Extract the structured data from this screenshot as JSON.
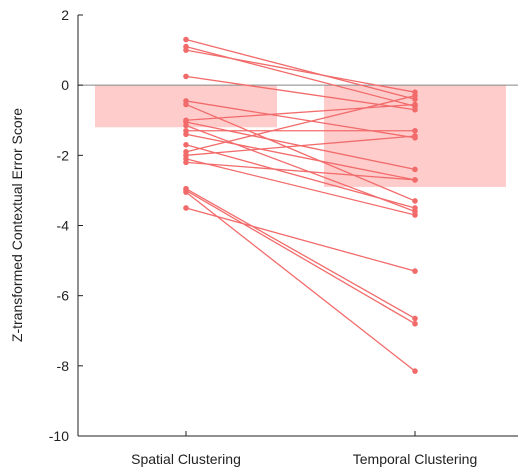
{
  "chart_data": {
    "type": "bar",
    "title": "",
    "xlabel": "",
    "ylabel": "Z-transformed Contextual Error Score",
    "categories": [
      "Spatial Clustering",
      "Temporal Clustering"
    ],
    "ylim": [
      -10,
      2
    ],
    "yticks": [
      2,
      0,
      -2,
      -4,
      -6,
      -8,
      -10
    ],
    "grid": false,
    "bar_color": "#ffcccc",
    "line_color": "#f26b6b",
    "zero_line_color": "#888888",
    "series": [
      {
        "name": "",
        "values": [
          -1.2,
          -2.9
        ]
      }
    ],
    "subjects": [
      {
        "spatial": 1.3,
        "temporal": -0.4
      },
      {
        "spatial": 1.1,
        "temporal": -0.6
      },
      {
        "spatial": 1.0,
        "temporal": -0.2
      },
      {
        "spatial": 0.25,
        "temporal": -0.7
      },
      {
        "spatial": -0.45,
        "temporal": -1.5
      },
      {
        "spatial": -0.55,
        "temporal": -3.3
      },
      {
        "spatial": -1.0,
        "temporal": -0.55
      },
      {
        "spatial": -1.05,
        "temporal": -2.4
      },
      {
        "spatial": -1.15,
        "temporal": -3.6
      },
      {
        "spatial": -1.3,
        "temporal": -1.3
      },
      {
        "spatial": -1.4,
        "temporal": -2.7
      },
      {
        "spatial": -1.7,
        "temporal": -3.5
      },
      {
        "spatial": -1.9,
        "temporal": -0.3
      },
      {
        "spatial": -2.0,
        "temporal": -1.45
      },
      {
        "spatial": -2.1,
        "temporal": -3.7
      },
      {
        "spatial": -2.2,
        "temporal": -2.7
      },
      {
        "spatial": -2.95,
        "temporal": -6.65
      },
      {
        "spatial": -3.05,
        "temporal": -8.15
      },
      {
        "spatial": -3.0,
        "temporal": -6.8
      },
      {
        "spatial": -3.5,
        "temporal": -5.3
      }
    ]
  }
}
